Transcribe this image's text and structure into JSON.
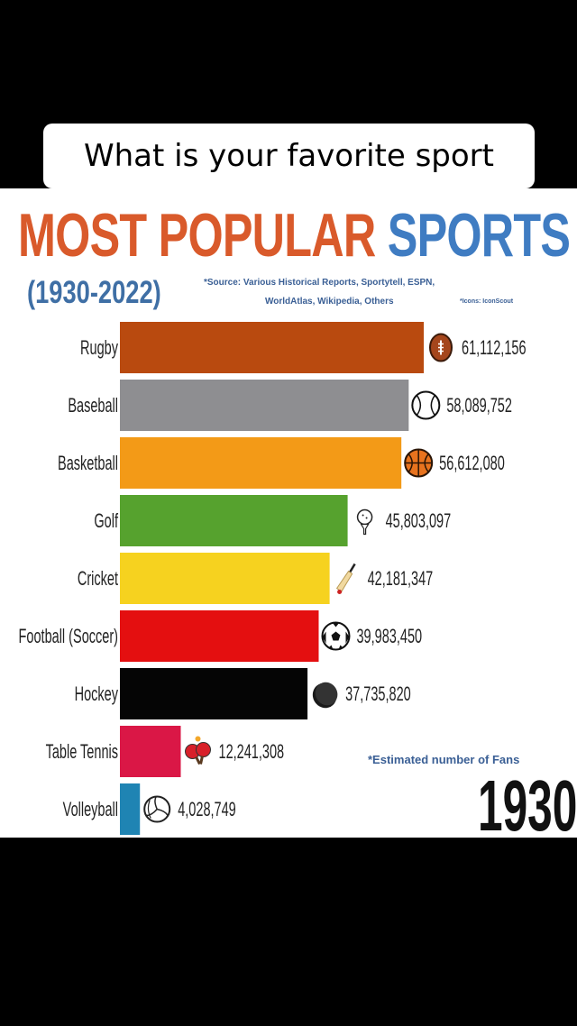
{
  "caption": "What is your favorite sport",
  "title": {
    "part1": "MOST POPULAR",
    "part2": "SPORTS"
  },
  "years": "(1930-2022)",
  "source": {
    "line1": "*Source: Various Historical Reports, Sportytell, ESPN,",
    "line2": "WorldAtlas, Wikipedia, Others",
    "icons_credit": "*Icons: IconScout"
  },
  "note": "*Estimated number of Fans",
  "year": "1930",
  "colors": {
    "title_orange": "#d95a2b",
    "title_blue": "#3f7cc2",
    "source_blue": "#3a5f95"
  },
  "chart_data": {
    "type": "bar",
    "orientation": "horizontal",
    "categories": [
      "Rugby",
      "Baseball",
      "Basketball",
      "Golf",
      "Cricket",
      "Football (Soccer)",
      "Hockey",
      "Table Tennis",
      "Volleyball"
    ],
    "values": [
      61112156,
      58089752,
      56612080,
      45803097,
      42181347,
      39983450,
      37735820,
      12241308,
      4028749
    ],
    "value_labels": [
      "61,112,156",
      "58,089,752",
      "56,612,080",
      "45,803,097",
      "42,181,347",
      "39,983,450",
      "37,735,820",
      "12,241,308",
      "4,028,749"
    ],
    "colors": [
      "#b94a0f",
      "#8e8e91",
      "#f39a17",
      "#56a22e",
      "#f6d21f",
      "#e40f10",
      "#050505",
      "#da1746",
      "#1f84b3"
    ],
    "icons": [
      "rugby-ball-icon",
      "baseball-icon",
      "basketball-icon",
      "golf-ball-icon",
      "cricket-bat-icon",
      "soccer-ball-icon",
      "hockey-puck-icon",
      "table-tennis-icon",
      "volleyball-icon"
    ],
    "xlim": [
      0,
      61112156
    ]
  }
}
